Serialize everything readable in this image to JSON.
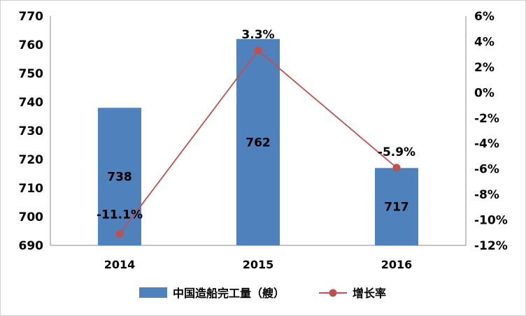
{
  "chart_data": {
    "type": "bar",
    "categories": [
      "2014",
      "2015",
      "2016"
    ],
    "series": [
      {
        "name": "中国造船完工量（艘）",
        "type": "bar",
        "axis": "left",
        "values": [
          738,
          762,
          717
        ],
        "labels": [
          "738",
          "762",
          "717"
        ],
        "color": "#4f81bd"
      },
      {
        "name": "增长率",
        "type": "line",
        "axis": "right",
        "values": [
          -11.1,
          3.3,
          -5.9
        ],
        "labels": [
          "-11.1%",
          "3.3%",
          "-5.9%"
        ],
        "color": "#c0504d"
      }
    ],
    "y_left": {
      "range": [
        690,
        770
      ],
      "ticks": [
        "690",
        "700",
        "710",
        "720",
        "730",
        "740",
        "750",
        "760",
        "770"
      ]
    },
    "y_right": {
      "range": [
        -12,
        6
      ],
      "ticks": [
        "-12%",
        "-10%",
        "-8%",
        "-6%",
        "-4%",
        "-2%",
        "0%",
        "2%",
        "4%",
        "6%"
      ]
    },
    "grid": false,
    "legend": "bottom-center"
  }
}
